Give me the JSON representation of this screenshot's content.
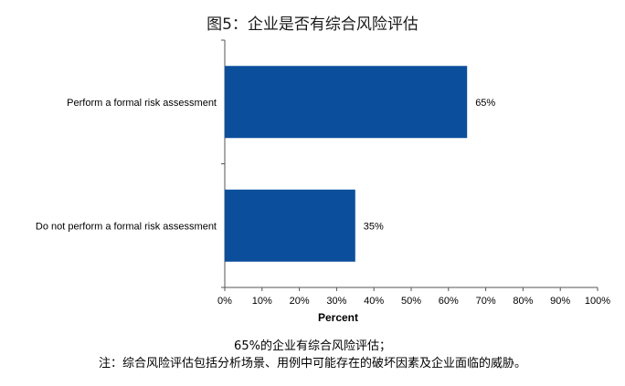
{
  "title": "图5：企业是否有综合风险评估",
  "caption": {
    "line1": "65%的企业有综合风险评估；",
    "line2": "注：综合风险评估包括分析场景、用例中可能存在的破坏因素及企业面临的威胁。"
  },
  "chart_data": {
    "type": "bar",
    "orientation": "horizontal",
    "categories": [
      "Perform a formal risk assessment",
      "Do not perform a formal risk assessment"
    ],
    "values": [
      65,
      35
    ],
    "data_labels": [
      "65%",
      "35%"
    ],
    "xlabel": "Percent",
    "xlim": [
      0,
      100
    ],
    "xticks": [
      "0%",
      "10%",
      "20%",
      "30%",
      "40%",
      "50%",
      "60%",
      "70%",
      "80%",
      "90%",
      "100%"
    ],
    "bar_color": "#0B4F9C",
    "grid": false,
    "legend": "none"
  }
}
